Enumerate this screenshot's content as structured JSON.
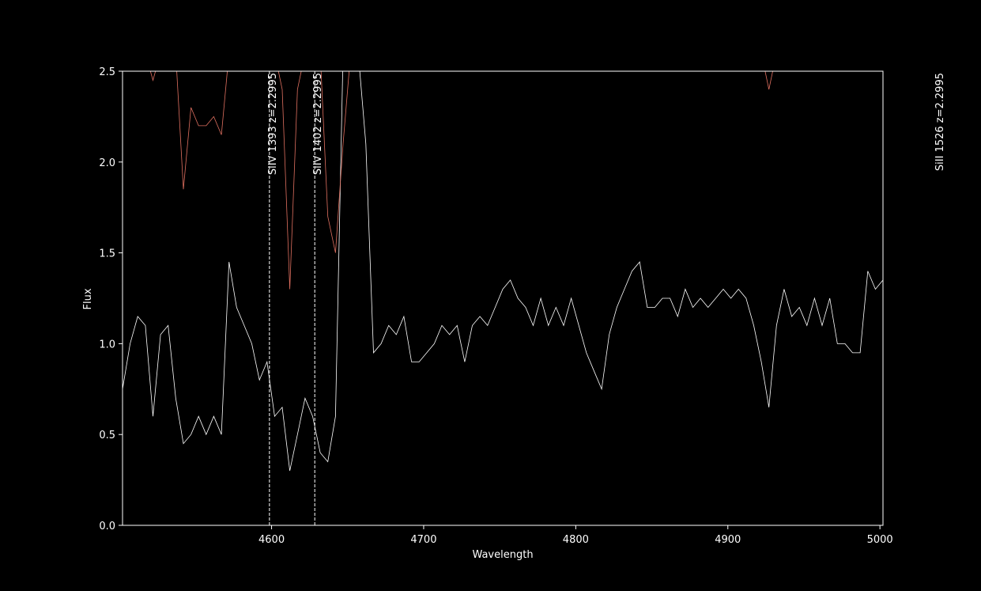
{
  "chart_data": {
    "type": "line",
    "xlabel": "Wavelength",
    "ylabel": "Flux",
    "xlim": [
      4502,
      5002
    ],
    "ylim": [
      0,
      2.5
    ],
    "xticks": [
      4600,
      4700,
      4800,
      4900,
      5000
    ],
    "yticks": [
      {
        "value": 0,
        "label": "0.0"
      },
      {
        "value": 0.5,
        "label": "0.5"
      },
      {
        "value": 1,
        "label": "1.0"
      },
      {
        "value": 1.5,
        "label": "1.5"
      },
      {
        "value": 2,
        "label": "2.0"
      },
      {
        "value": 2.5,
        "label": "2.5"
      }
    ],
    "x": [
      4502,
      4507,
      4512,
      4517,
      4522,
      4527,
      4532,
      4537,
      4542,
      4547,
      4552,
      4557,
      4562,
      4567,
      4572,
      4577,
      4582,
      4587,
      4592,
      4597,
      4602,
      4607,
      4612,
      4617,
      4622,
      4627,
      4632,
      4637,
      4642,
      4647,
      4652,
      4657,
      4662,
      4667,
      4672,
      4677,
      4682,
      4687,
      4692,
      4697,
      4702,
      4707,
      4712,
      4717,
      4722,
      4727,
      4732,
      4737,
      4742,
      4747,
      4752,
      4757,
      4762,
      4767,
      4772,
      4777,
      4782,
      4787,
      4792,
      4797,
      4802,
      4807,
      4812,
      4817,
      4822,
      4827,
      4832,
      4837,
      4842,
      4847,
      4852,
      4857,
      4862,
      4867,
      4872,
      4877,
      4882,
      4887,
      4892,
      4897,
      4902,
      4907,
      4912,
      4917,
      4922,
      4927,
      4932,
      4937,
      4942,
      4947,
      4952,
      4957,
      4962,
      4967,
      4972,
      4977,
      4982,
      4987,
      4992,
      4997,
      5002
    ],
    "series": [
      {
        "color": "#ffffff",
        "values": [
          0.75,
          1.0,
          1.15,
          1.1,
          0.6,
          1.05,
          1.1,
          0.7,
          0.45,
          0.5,
          0.6,
          0.5,
          0.6,
          0.5,
          1.45,
          1.2,
          1.1,
          1.0,
          0.8,
          0.9,
          0.6,
          0.65,
          0.3,
          0.5,
          0.7,
          0.6,
          0.4,
          0.35,
          0.6,
          2.6,
          2.6,
          2.6,
          2.1,
          0.95,
          1.0,
          1.1,
          1.05,
          1.15,
          0.9,
          0.9,
          0.95,
          1.0,
          1.1,
          1.05,
          1.1,
          0.9,
          1.1,
          1.15,
          1.1,
          1.2,
          1.3,
          1.35,
          1.25,
          1.2,
          1.1,
          1.25,
          1.1,
          1.2,
          1.1,
          1.25,
          1.1,
          0.95,
          0.85,
          0.75,
          1.05,
          1.2,
          1.3,
          1.4,
          1.45,
          1.2,
          1.2,
          1.25,
          1.25,
          1.15,
          1.3,
          1.2,
          1.25,
          1.2,
          1.25,
          1.3,
          1.25,
          1.3,
          1.25,
          1.1,
          0.9,
          0.65,
          1.1,
          1.3,
          1.15,
          1.2,
          1.1,
          1.25,
          1.1,
          1.25,
          1.0,
          1.0,
          0.95,
          0.95,
          1.4,
          1.3,
          1.35
        ]
      },
      {
        "color": "#e07060",
        "values": [
          2.6,
          2.6,
          2.6,
          2.6,
          2.45,
          2.6,
          2.6,
          2.6,
          1.85,
          2.3,
          2.2,
          2.2,
          2.25,
          2.15,
          2.6,
          2.6,
          2.6,
          2.6,
          2.6,
          2.6,
          2.6,
          2.4,
          1.3,
          2.4,
          2.6,
          2.6,
          2.6,
          1.7,
          1.5,
          2.1,
          2.6,
          2.6,
          2.6,
          2.6,
          2.6,
          2.6,
          2.6,
          2.6,
          2.6,
          2.6,
          2.6,
          2.6,
          2.6,
          2.6,
          2.6,
          2.6,
          2.6,
          2.6,
          2.6,
          2.6,
          2.6,
          2.6,
          2.6,
          2.6,
          2.6,
          2.6,
          2.6,
          2.6,
          2.6,
          2.6,
          2.6,
          2.6,
          2.6,
          2.6,
          2.6,
          2.6,
          2.6,
          2.6,
          2.6,
          2.6,
          2.6,
          2.6,
          2.6,
          2.6,
          2.6,
          2.6,
          2.6,
          2.6,
          2.6,
          2.6,
          2.6,
          2.6,
          2.6,
          2.6,
          2.6,
          2.4,
          2.6,
          2.6,
          2.6,
          2.6,
          2.6,
          2.6,
          2.6,
          2.6,
          2.6,
          2.6,
          2.6,
          2.6,
          2.6,
          2.6,
          2.6
        ]
      }
    ],
    "annotations": [
      {
        "x": 4598.6,
        "text": "SiIV 1393  z=2.2995"
      },
      {
        "x": 4628.4,
        "text": "SiIV 1402  z=2.2995"
      },
      {
        "x": 5037.3,
        "text": "SiII 1526  z=2.2995"
      }
    ]
  }
}
